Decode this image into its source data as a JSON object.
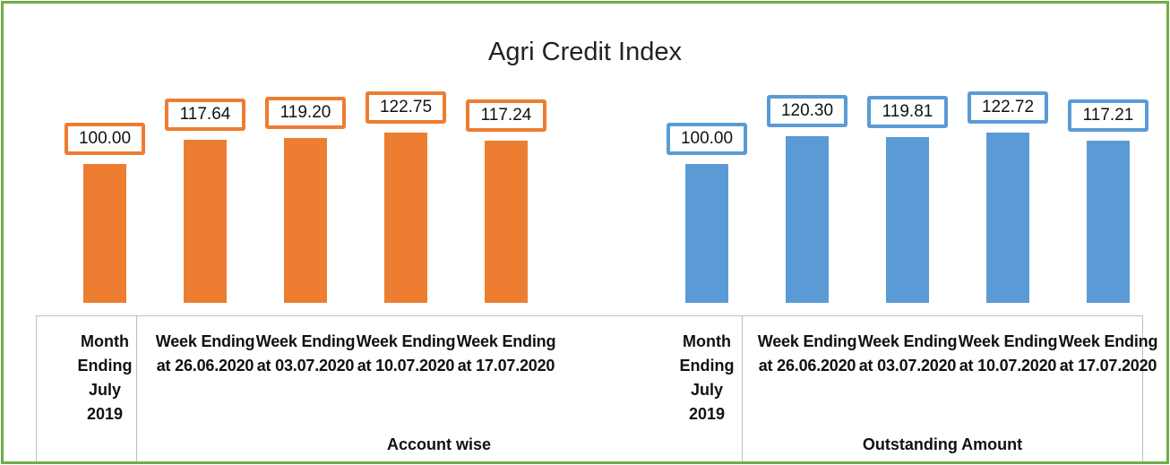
{
  "chart_data": {
    "type": "bar",
    "title": "Agri Credit Index",
    "categories": [
      "Month Ending July 2019",
      "Week Ending at 26.06.2020",
      "Week Ending at 03.07.2020",
      "Week Ending at 10.07.2020",
      "Week Ending at 17.07.2020"
    ],
    "series": [
      {
        "name": "Account wise",
        "color": "#ed7d31",
        "values": [
          100.0,
          117.64,
          119.2,
          122.75,
          117.24
        ],
        "value_labels": [
          "100.00",
          "117.64",
          "119.20",
          "122.75",
          "117.24"
        ]
      },
      {
        "name": "Outstanding Amount",
        "color": "#5b9bd5",
        "values": [
          100.0,
          120.3,
          119.81,
          122.72,
          117.21
        ],
        "value_labels": [
          "100.00",
          "120.30",
          "119.81",
          "122.72",
          "117.21"
        ]
      }
    ],
    "ylim": [
      0,
      150
    ]
  }
}
